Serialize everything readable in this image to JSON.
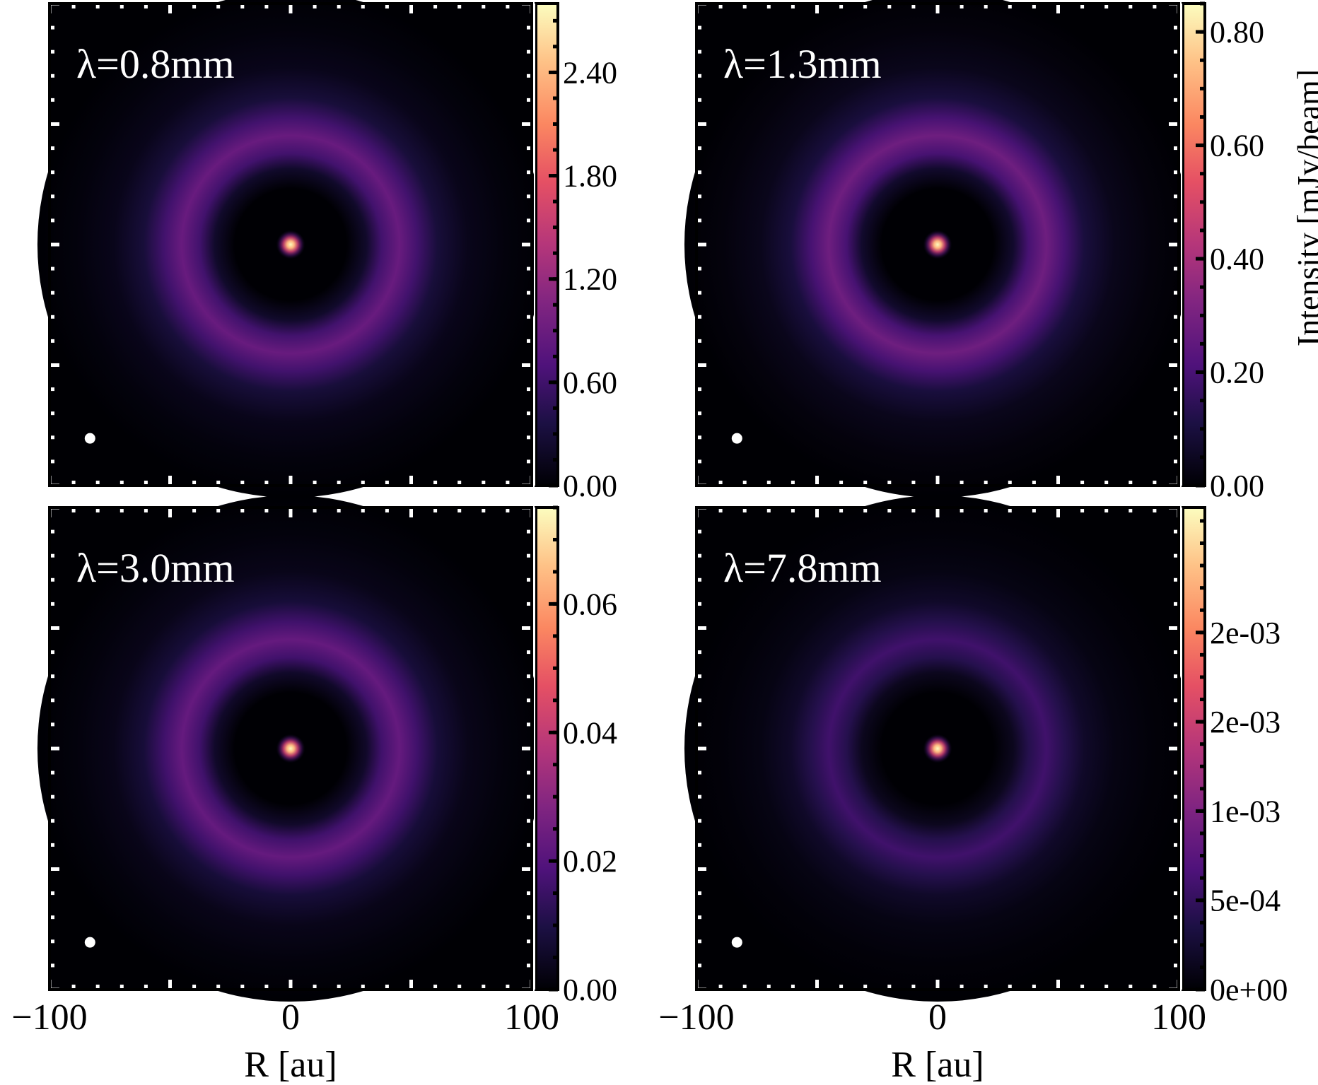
{
  "chart_data": [
    {
      "type": "heatmap",
      "panel_label": "λ=0.8mm",
      "x_ticks": [
        "−100",
        "0",
        "100"
      ],
      "show_xlabel": false,
      "xlabel": "R [au]",
      "xlim": [
        -100,
        100
      ],
      "ylim": [
        -100,
        100
      ],
      "colorscale": "magma",
      "colorbar_label": "",
      "colorbar_range": [
        0,
        2.8
      ],
      "colorbar_ticks": [
        {
          "value": 0.0,
          "label": "0.00"
        },
        {
          "value": 0.6,
          "label": "0.60"
        },
        {
          "value": 1.2,
          "label": "1.20"
        },
        {
          "value": 1.8,
          "label": "1.80"
        },
        {
          "value": 2.4,
          "label": "2.40"
        }
      ],
      "peak_center": 2.8,
      "ring_center_au": 45,
      "ring_peak": 0.88,
      "beam_marker": "white dot, lower-left"
    },
    {
      "type": "heatmap",
      "panel_label": "λ=1.3mm",
      "x_ticks": [
        "−100",
        "0",
        "100"
      ],
      "show_xlabel": false,
      "xlabel": "R [au]",
      "xlim": [
        -100,
        100
      ],
      "ylim": [
        -100,
        100
      ],
      "colorscale": "magma",
      "colorbar_label": "Intensity [mJy/beam]",
      "colorbar_range": [
        0,
        0.85
      ],
      "colorbar_ticks": [
        {
          "value": 0.0,
          "label": "0.00"
        },
        {
          "value": 0.2,
          "label": "0.20"
        },
        {
          "value": 0.4,
          "label": "0.40"
        },
        {
          "value": 0.6,
          "label": "0.60"
        },
        {
          "value": 0.8,
          "label": "0.80"
        }
      ],
      "peak_center": 0.85,
      "ring_center_au": 45,
      "ring_peak": 0.28,
      "beam_marker": "white dot, lower-left"
    },
    {
      "type": "heatmap",
      "panel_label": "λ=3.0mm",
      "x_ticks": [
        "−100",
        "0",
        "100"
      ],
      "show_xlabel": true,
      "xlabel": "R [au]",
      "xlim": [
        -100,
        100
      ],
      "ylim": [
        -100,
        100
      ],
      "colorscale": "magma",
      "colorbar_label": "",
      "colorbar_range": [
        0,
        0.075
      ],
      "colorbar_ticks": [
        {
          "value": 0.0,
          "label": "0.00"
        },
        {
          "value": 0.02,
          "label": "0.02"
        },
        {
          "value": 0.04,
          "label": "0.04"
        },
        {
          "value": 0.06,
          "label": "0.06"
        }
      ],
      "peak_center": 0.075,
      "ring_center_au": 45,
      "ring_peak": 0.023,
      "beam_marker": "white dot, lower-left"
    },
    {
      "type": "heatmap",
      "panel_label": "λ=7.8mm",
      "x_ticks": [
        "−100",
        "0",
        "100"
      ],
      "show_xlabel": true,
      "xlabel": "R [au]",
      "xlim": [
        -100,
        100
      ],
      "ylim": [
        -100,
        100
      ],
      "colorscale": "magma",
      "colorbar_label": "",
      "colorbar_range": [
        0,
        0.0027
      ],
      "colorbar_ticks": [
        {
          "value": 0.0,
          "label": "0e+00"
        },
        {
          "value": 0.0005,
          "label": "5e-04"
        },
        {
          "value": 0.001,
          "label": "1e-03"
        },
        {
          "value": 0.0015,
          "label": "2e-03"
        },
        {
          "value": 0.002,
          "label": "2e-03"
        }
      ],
      "peak_center": 0.0027,
      "ring_center_au": 45,
      "ring_peak": 0.00058,
      "beam_marker": "white dot, lower-left"
    }
  ]
}
